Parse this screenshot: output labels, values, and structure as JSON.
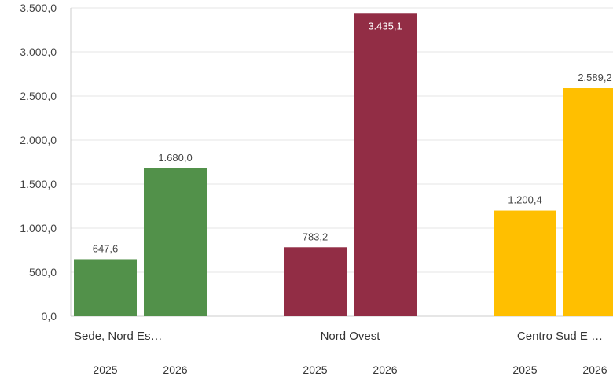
{
  "chart_data": {
    "type": "bar",
    "title": "",
    "xlabel": "",
    "ylabel": "",
    "ylim": [
      0,
      3500
    ],
    "y_ticks": [
      "0,0",
      "500,0",
      "1.000,0",
      "1.500,0",
      "2.000,0",
      "2.500,0",
      "3.000,0",
      "3.500,0"
    ],
    "grid": true,
    "groups": [
      {
        "name": "Sede, Nord Es…",
        "color": "#52914a",
        "bars": [
          {
            "year": "2025",
            "value": 647.6,
            "label": "647,6"
          },
          {
            "year": "2026",
            "value": 1680.0,
            "label": "1.680,0"
          }
        ]
      },
      {
        "name": "Nord Ovest",
        "color": "#922d45",
        "bars": [
          {
            "year": "2025",
            "value": 783.2,
            "label": "783,2"
          },
          {
            "year": "2026",
            "value": 3435.1,
            "label": "3.435,1"
          }
        ]
      },
      {
        "name": "Centro Sud E …",
        "color": "#ffbf00",
        "bars": [
          {
            "year": "2025",
            "value": 1200.4,
            "label": "1.200,4"
          },
          {
            "year": "2026",
            "value": 2589.2,
            "label": "2.589,2"
          }
        ]
      }
    ]
  }
}
